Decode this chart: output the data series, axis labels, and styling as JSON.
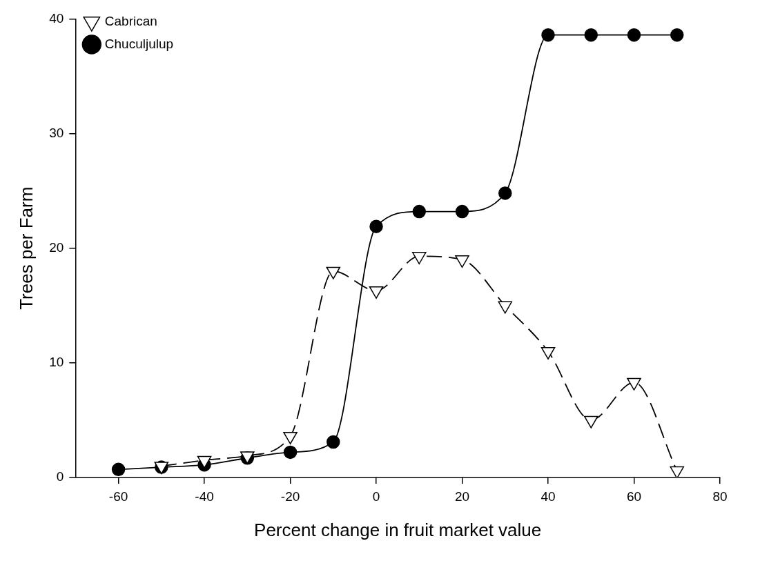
{
  "chart_data": {
    "type": "line",
    "xlabel": "Percent change in fruit market value",
    "ylabel": "Trees per Farm",
    "xlim": [
      -70,
      80
    ],
    "xticks": [
      -60,
      -40,
      -20,
      0,
      20,
      40,
      60,
      80
    ],
    "ylim": [
      0,
      40
    ],
    "yticks": [
      0,
      10,
      20,
      30,
      40
    ],
    "grid": false,
    "legend": "top left",
    "series": [
      {
        "name": "Chuculjulup",
        "color": "#000000",
        "marker": "circle",
        "line_style": "solid",
        "x": [
          -60,
          -50,
          -40,
          -30,
          -20,
          -10,
          0,
          10,
          20,
          30,
          40,
          50,
          60,
          70
        ],
        "values": [
          0.7,
          0.9,
          1.1,
          1.7,
          2.2,
          3.1,
          21.9,
          23.2,
          23.2,
          24.8,
          38.6,
          38.6,
          38.6,
          38.6
        ]
      },
      {
        "name": "Cabrican",
        "color": "#000000",
        "marker": "triangle",
        "line_style": "dashed",
        "x": [
          -50,
          -40,
          -30,
          -20,
          -10,
          0,
          10,
          20,
          30,
          40,
          50,
          60,
          70
        ],
        "values": [
          1.0,
          1.5,
          1.9,
          3.6,
          18.0,
          16.3,
          19.3,
          19.0,
          15.0,
          11.0,
          5.0,
          8.3,
          0.6
        ]
      }
    ]
  }
}
